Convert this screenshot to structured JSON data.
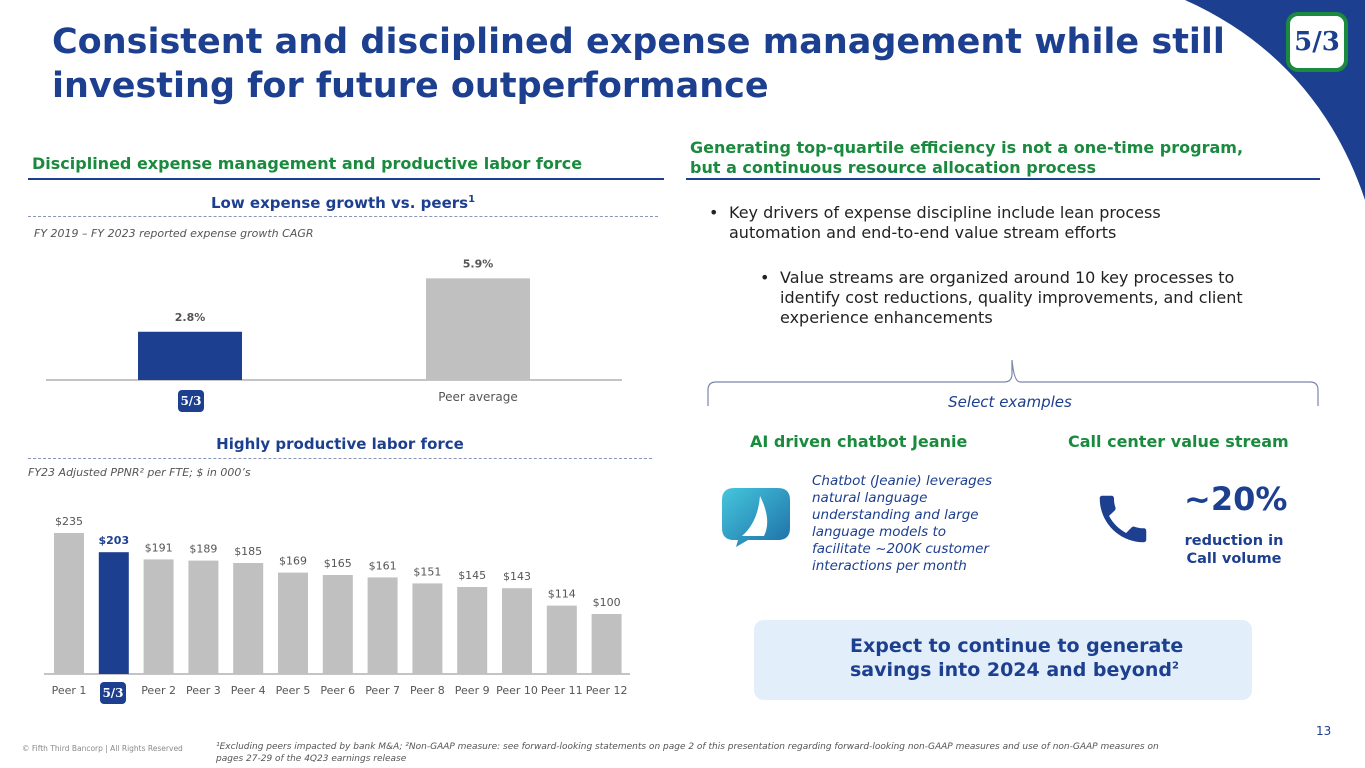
{
  "header": {
    "title": "Consistent and disciplined expense management while still investing for future outperformance",
    "logo_text": "5/3"
  },
  "left": {
    "section_title": "Disciplined expense management and productive labor force",
    "expense_chart": {
      "subtitle": "Low expense growth vs. peers",
      "subtitle_sup": "1",
      "note": "FY 2019 – FY 2023 reported expense growth CAGR"
    },
    "labor_chart": {
      "subtitle": "Highly productive labor force",
      "note": "FY23 Adjusted PPNR² per FTE; $ in 000’s"
    }
  },
  "right": {
    "section_title_line1": "Generating top-quartile efficiency is not a one-time program,",
    "section_title_line2": "but a continuous resource allocation process",
    "bullet1": "Key drivers of expense discipline include lean process automation and end-to-end value stream efforts",
    "bullet2": "Value streams are organized around 10 key processes to identify cost reductions, quality improvements, and client experience enhancements",
    "bullet_marker": "•",
    "select_examples": "Select examples",
    "example1": {
      "title": "AI driven chatbot Jeanie",
      "text": "Chatbot (Jeanie) leverages natural language understanding and large language models to facilitate ~200K customer interactions per month"
    },
    "example2": {
      "title": "Call center value stream",
      "value": "~20%",
      "caption_line1": "reduction in",
      "caption_line2": "Call volume"
    },
    "callout_line1": "Expect to continue to generate",
    "callout_line2": "savings into 2024 and beyond",
    "callout_sup": "2"
  },
  "footer": {
    "page_number": "13",
    "copyright": "© Fifth Third Bancorp | All Rights Reserved",
    "footnote": "¹Excluding peers impacted by bank M&A; ²Non-GAAP measure: see forward-looking statements on page 2 of this presentation regarding forward-looking non-GAAP measures and use of non-GAAP measures on pages 27-29 of the 4Q23 earnings release"
  },
  "colors": {
    "brand_blue": "#1d3f8f",
    "brand_green": "#1a8a3e",
    "peer_gray": "#c0c0c0",
    "callout_bg": "#e2eef9"
  },
  "chart_data": [
    {
      "type": "bar",
      "title": "Low expense growth vs. peers",
      "subtitle": "FY 2019 – FY 2023 reported expense growth CAGR",
      "categories": [
        "Fifth Third",
        "Peer average"
      ],
      "values": [
        2.8,
        5.9
      ],
      "value_labels": [
        "2.8%",
        "5.9%"
      ],
      "highlight_index": 0,
      "ylim": [
        0,
        6.5
      ]
    },
    {
      "type": "bar",
      "title": "Highly productive labor force",
      "subtitle": "FY23 Adjusted PPNR² per FTE; $ in 000’s",
      "categories": [
        "Peer 1",
        "Fifth Third",
        "Peer 2",
        "Peer 3",
        "Peer 4",
        "Peer 5",
        "Peer 6",
        "Peer 7",
        "Peer 8",
        "Peer 9",
        "Peer 10",
        "Peer 11",
        "Peer 12"
      ],
      "values": [
        235,
        203,
        191,
        189,
        185,
        169,
        165,
        161,
        151,
        145,
        143,
        114,
        100
      ],
      "value_labels": [
        "$235",
        "$203",
        "$191",
        "$189",
        "$185",
        "$169",
        "$165",
        "$161",
        "$151",
        "$145",
        "$143",
        "$114",
        "$100"
      ],
      "highlight_index": 1,
      "ylim": [
        0,
        240
      ]
    }
  ]
}
